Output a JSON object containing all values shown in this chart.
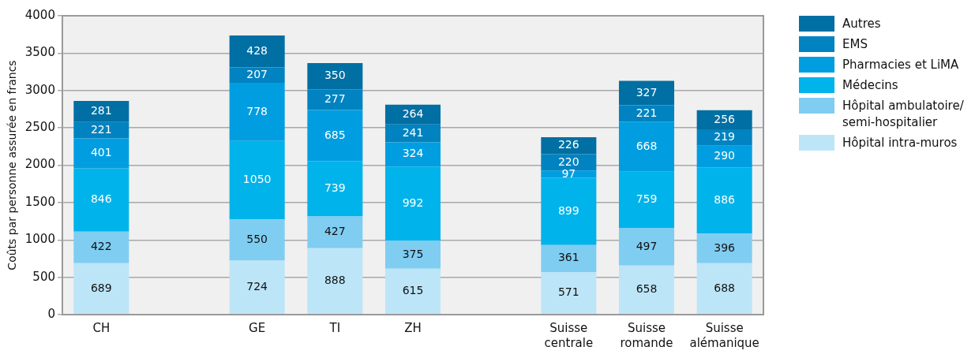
{
  "chart_data": {
    "type": "bar",
    "stacked": true,
    "ylabel": "Coûts par personne assurée en francs",
    "categories": [
      "CH",
      null,
      "GE",
      "TI",
      "ZH",
      null,
      "Suisse centrale",
      "Suisse romande",
      "Suisse alémanique"
    ],
    "series": [
      {
        "name": "Hôpital intra-muros",
        "color": "#bde5f8",
        "values": [
          689,
          null,
          724,
          888,
          615,
          null,
          571,
          658,
          688
        ]
      },
      {
        "name": "Hôpital ambulatoire/semi-hospitalier",
        "color": "#80cdf2",
        "values": [
          422,
          null,
          550,
          427,
          375,
          null,
          361,
          497,
          396
        ]
      },
      {
        "name": "Médecins",
        "color": "#00b3ea",
        "values": [
          846,
          null,
          1050,
          739,
          992,
          null,
          899,
          759,
          886
        ]
      },
      {
        "name": "Pharmacies et LiMA",
        "color": "#009ee0",
        "values": [
          401,
          null,
          778,
          685,
          324,
          null,
          97,
          668,
          290
        ]
      },
      {
        "name": "EMS",
        "color": "#0083c0",
        "values": [
          221,
          null,
          207,
          277,
          241,
          null,
          220,
          221,
          219
        ]
      },
      {
        "name": "Autres",
        "color": "#006fa3",
        "values": [
          281,
          null,
          428,
          350,
          264,
          null,
          226,
          327,
          256
        ]
      }
    ],
    "ylim": [
      0,
      4000
    ],
    "yticks": [
      0,
      500,
      1000,
      1500,
      2000,
      2500,
      3000,
      3500,
      4000
    ],
    "grid": "y",
    "legend": "right",
    "data_labels": true
  }
}
